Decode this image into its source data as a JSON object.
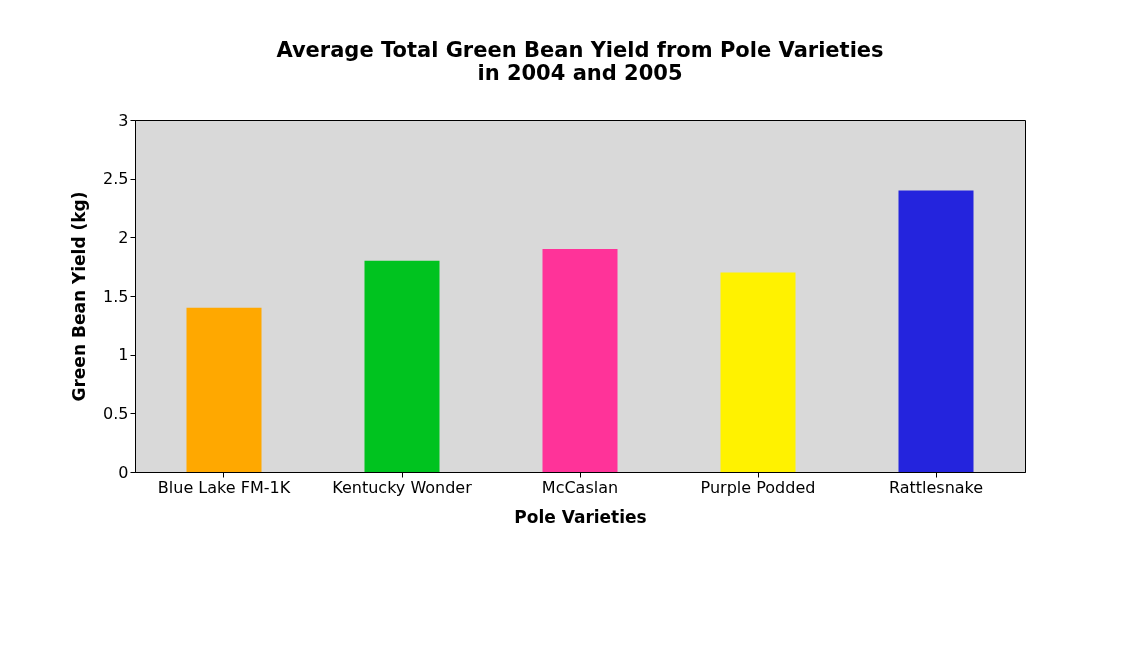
{
  "chart_data": {
    "type": "bar",
    "title": "Average Total Green Bean Yield from Pole Varieties in 2004 and 2005",
    "xlabel": "Pole Varieties",
    "ylabel": "Green Bean Yield (kg)",
    "categories": [
      "Blue Lake FM-1K",
      "Kentucky Wonder",
      "McCaslan",
      "Purple Podded",
      "Rattlesnake"
    ],
    "values": [
      1.4,
      1.8,
      1.9,
      1.7,
      2.4
    ],
    "colors": [
      "#ffa800",
      "#00c31f",
      "#ff3399",
      "#fff200",
      "#2424dd"
    ],
    "ylim": [
      0,
      3
    ],
    "yticks": [
      0,
      0.5,
      1,
      1.5,
      2,
      2.5,
      3
    ],
    "grid": false
  }
}
